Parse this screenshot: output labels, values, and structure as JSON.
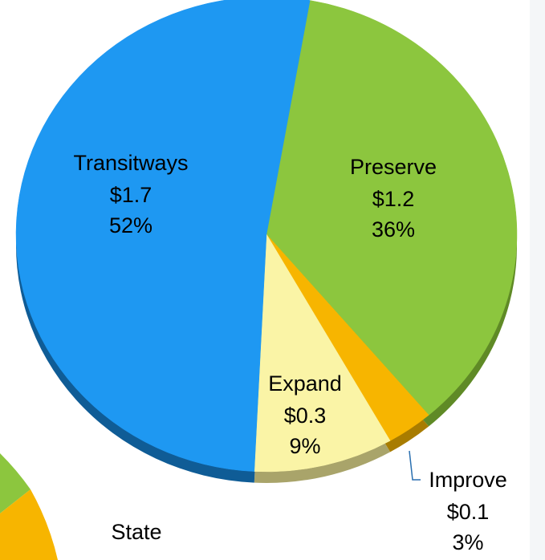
{
  "chart_data": {
    "type": "pie",
    "categories": [
      "Preserve",
      "Improve",
      "Expand",
      "Transitways"
    ],
    "values": [
      36,
      3,
      9,
      52
    ],
    "value_labels": [
      "36%",
      "3%",
      "9%",
      "52%"
    ],
    "amounts": [
      1.2,
      0.1,
      0.3,
      1.7
    ],
    "amount_labels": [
      "$1.2",
      "$0.1",
      "$0.3",
      "$1.7"
    ],
    "colors": [
      "#8cc63e",
      "#f7b500",
      "#faf4a6",
      "#1e98f2"
    ],
    "depth_colors": [
      "#5f8a26",
      "#a87c00",
      "#a9a46a",
      "#0f5c96"
    ],
    "other_label": "State"
  }
}
